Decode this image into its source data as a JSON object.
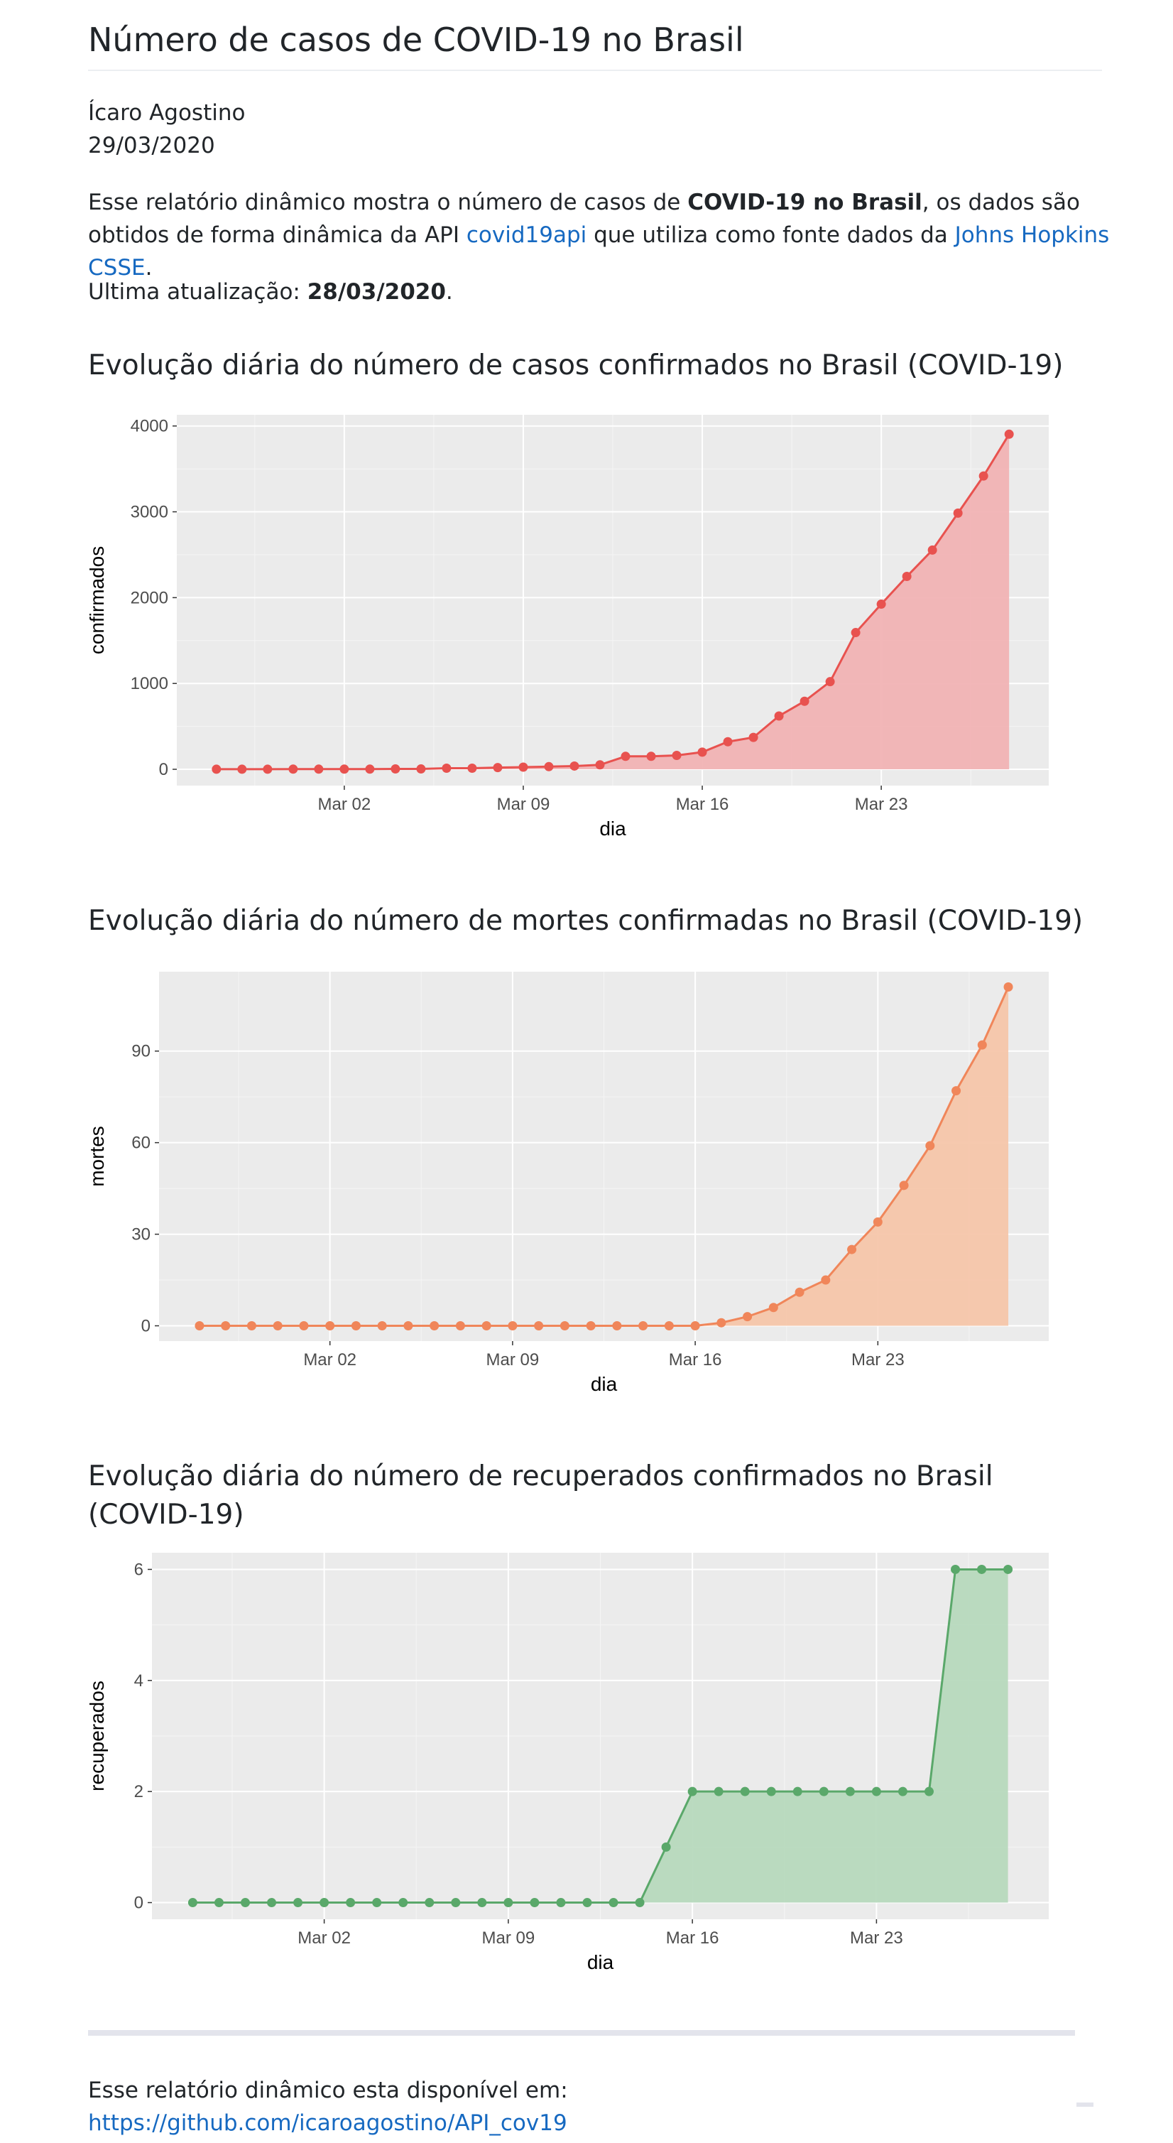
{
  "header": {
    "title": "Número de casos de COVID-19 no Brasil",
    "author": "Ícaro Agostino",
    "date": "29/03/2020"
  },
  "intro": {
    "part1": "Esse relatório dinâmico mostra o número de casos de ",
    "bold": "COVID-19 no Brasil",
    "part2": ", os dados são obtidos de forma dinâmica da API ",
    "link1": "covid19api",
    "part3": " que utiliza como fonte dados da ",
    "link2": "Johns Hopkins CSSE",
    "part4": "."
  },
  "update": {
    "label": "Ultima atualização: ",
    "value": "28/03/2020",
    "suffix": "."
  },
  "sections": [
    {
      "title": "Evolução diária do número de casos confirmados no Brasil (COVID-19)"
    },
    {
      "title": "Evolução diária do número de mortes confirmadas no Brasil (COVID-19)"
    },
    {
      "title": "Evolução diária do número de recuperados confirmados no Brasil (COVID-19)"
    }
  ],
  "footer": {
    "text": "Esse relatório dinâmico esta disponível em:",
    "link": "https://github.com/icaroagostino/API_cov19"
  },
  "chart_data": [
    {
      "type": "area",
      "xlabel": "dia",
      "ylabel": "confirmados",
      "color": "#e8524f",
      "fill": "#f1b3b4",
      "panel": "#ebebeb",
      "x_start": "2020-02-26",
      "x_end": "2020-03-28",
      "xticks": [
        "Mar 02",
        "Mar 09",
        "Mar 16",
        "Mar 23"
      ],
      "yticks": [
        0,
        1000,
        2000,
        3000,
        4000
      ],
      "ylim": [
        -190,
        4130
      ],
      "values": [
        1,
        1,
        1,
        2,
        2,
        2,
        2,
        4,
        4,
        13,
        13,
        20,
        25,
        31,
        38,
        52,
        151,
        151,
        162,
        200,
        321,
        372,
        621,
        793,
        1021,
        1593,
        1924,
        2247,
        2554,
        2985,
        3417,
        3904
      ]
    },
    {
      "type": "area",
      "xlabel": "dia",
      "ylabel": "mortes",
      "color": "#f0865a",
      "fill": "#f5c6aa",
      "panel": "#ebebeb",
      "x_start": "2020-02-26",
      "x_end": "2020-03-28",
      "xticks": [
        "Mar 02",
        "Mar 09",
        "Mar 16",
        "Mar 23"
      ],
      "yticks": [
        0,
        30,
        60,
        90
      ],
      "ylim": [
        -5,
        116
      ],
      "values": [
        0,
        0,
        0,
        0,
        0,
        0,
        0,
        0,
        0,
        0,
        0,
        0,
        0,
        0,
        0,
        0,
        0,
        0,
        0,
        0,
        1,
        3,
        6,
        11,
        15,
        25,
        34,
        46,
        59,
        77,
        92,
        111
      ]
    },
    {
      "type": "area",
      "xlabel": "dia",
      "ylabel": "recuperados",
      "color": "#5aa86a",
      "fill": "#b7d9bd",
      "panel": "#ebebeb",
      "x_start": "2020-02-26",
      "x_end": "2020-03-28",
      "xticks": [
        "Mar 02",
        "Mar 09",
        "Mar 16",
        "Mar 23"
      ],
      "yticks": [
        0,
        2,
        4,
        6
      ],
      "ylim": [
        -0.3,
        6.3
      ],
      "values": [
        0,
        0,
        0,
        0,
        0,
        0,
        0,
        0,
        0,
        0,
        0,
        0,
        0,
        0,
        0,
        0,
        0,
        0,
        1,
        2,
        2,
        2,
        2,
        2,
        2,
        2,
        2,
        2,
        2,
        6,
        6,
        6
      ]
    }
  ]
}
